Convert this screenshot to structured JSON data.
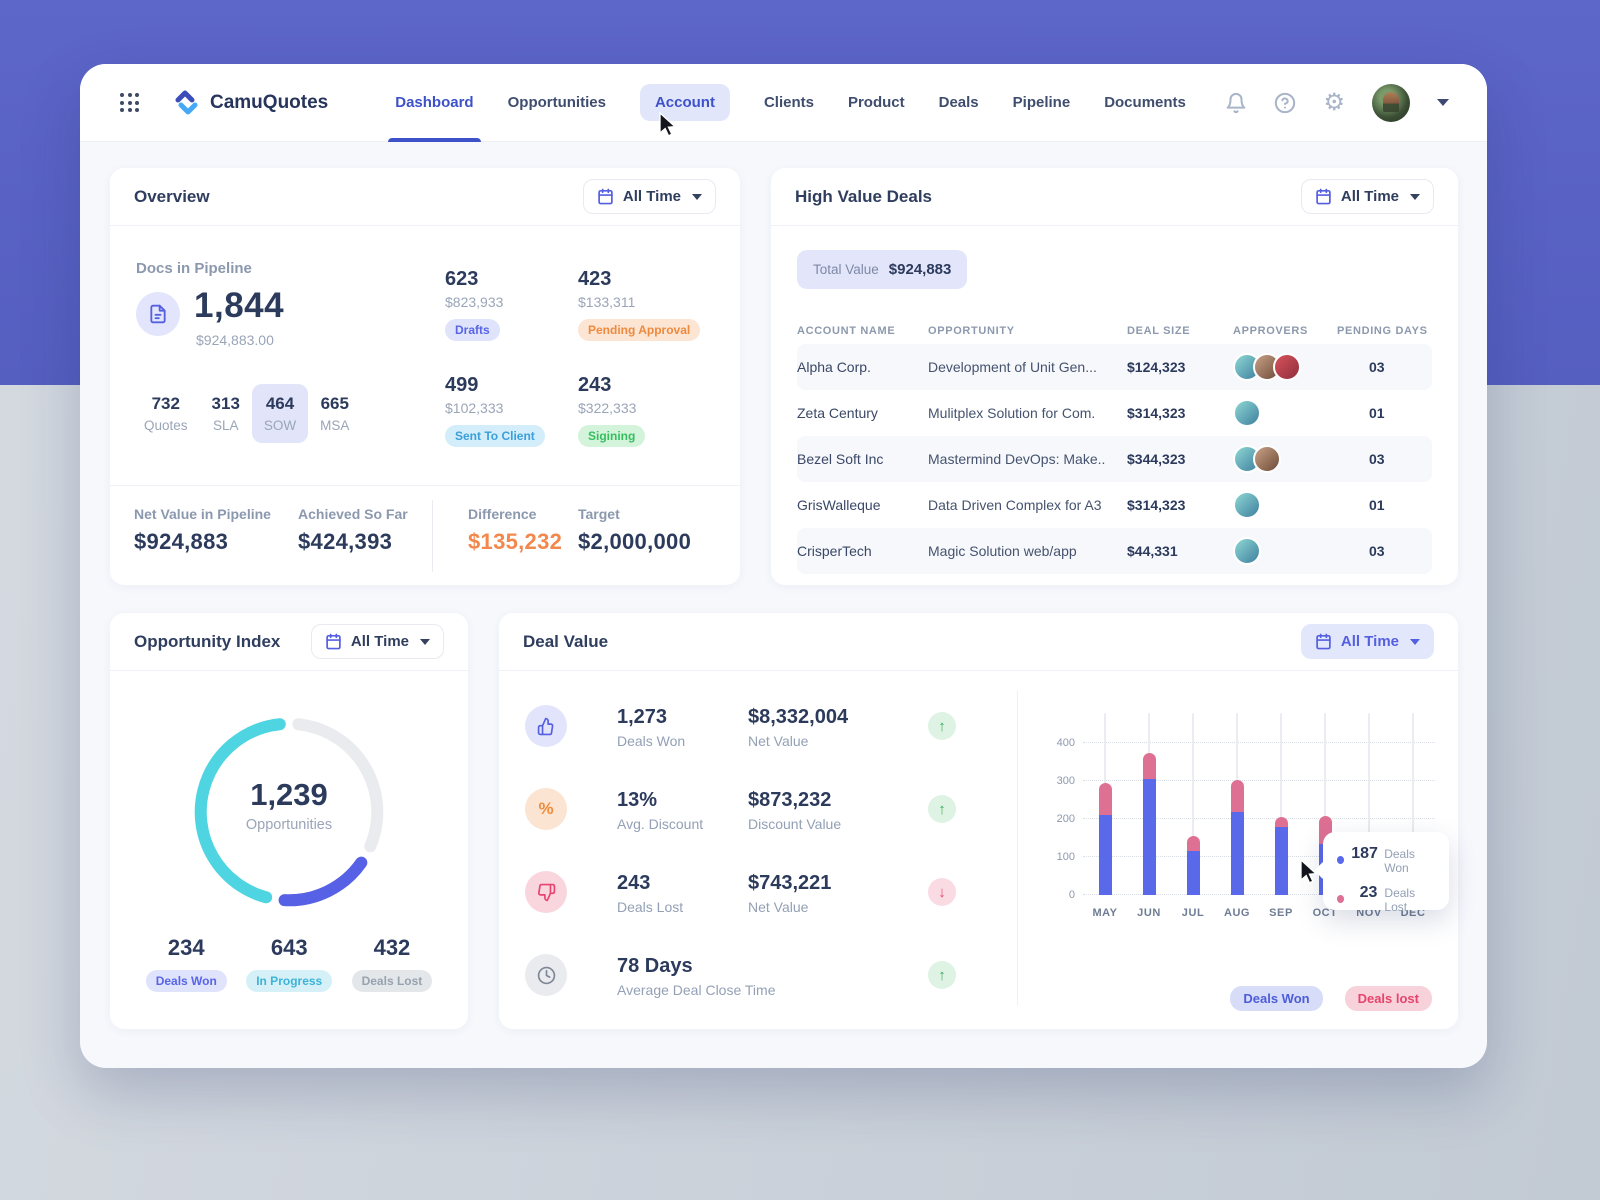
{
  "app": {
    "brand": "CamuQuotes"
  },
  "nav": {
    "items": [
      {
        "label": "Dashboard",
        "state": "active"
      },
      {
        "label": "Opportunities",
        "state": "normal"
      },
      {
        "label": "Account",
        "state": "hovered"
      },
      {
        "label": "Clients",
        "state": "normal"
      },
      {
        "label": "Product",
        "state": "normal"
      },
      {
        "label": "Deals",
        "state": "normal"
      },
      {
        "label": "Pipeline",
        "state": "normal"
      },
      {
        "label": "Documents",
        "state": "normal"
      }
    ]
  },
  "overview": {
    "title": "Overview",
    "time_filter": "All Time",
    "docs_in_pipeline": {
      "label": "Docs in Pipeline",
      "count": "1,844",
      "value": "$924,883.00"
    },
    "doc_types": [
      {
        "count": "732",
        "label": "Quotes",
        "selected": false
      },
      {
        "count": "313",
        "label": "SLA",
        "selected": false
      },
      {
        "count": "464",
        "label": "SOW",
        "selected": true
      },
      {
        "count": "665",
        "label": "MSA",
        "selected": false
      }
    ],
    "statuses": [
      {
        "count": "623",
        "value": "$823,933",
        "label": "Drafts",
        "style": "purple"
      },
      {
        "count": "423",
        "value": "$133,311",
        "label": "Pending Approval",
        "style": "orange"
      },
      {
        "count": "499",
        "value": "$102,333",
        "label": "Sent To Client",
        "style": "blue"
      },
      {
        "count": "243",
        "value": "$322,333",
        "label": "Sigining",
        "style": "green"
      }
    ],
    "footer": [
      {
        "label": "Net Value in Pipeline",
        "value": "$924,883"
      },
      {
        "label": "Achieved So Far",
        "value": "$424,393"
      },
      {
        "label": "Difference",
        "value": "$135,232"
      },
      {
        "label": "Target",
        "value": "$2,000,000"
      }
    ]
  },
  "high_value_deals": {
    "title": "High Value Deals",
    "time_filter": "All Time",
    "total_label": "Total Value",
    "total_value": "$924,883",
    "columns": [
      "ACCOUNT NAME",
      "OPPORTUNITY",
      "DEAL SIZE",
      "APPROVERS",
      "PENDING DAYS"
    ],
    "rows": [
      {
        "account": "Alpha Corp.",
        "opportunity": "Development of Unit Gen...",
        "deal_size": "$124,323",
        "approvers": 3,
        "pending_days": "03"
      },
      {
        "account": "Zeta Century",
        "opportunity": "Mulitplex Solution for Com.",
        "deal_size": "$314,323",
        "approvers": 1,
        "pending_days": "01"
      },
      {
        "account": "Bezel Soft Inc",
        "opportunity": "Mastermind DevOps: Make..",
        "deal_size": "$344,323",
        "approvers": 2,
        "pending_days": "03"
      },
      {
        "account": "GrisWalleque",
        "opportunity": "Data Driven Complex for A3",
        "deal_size": "$314,323",
        "approvers": 1,
        "pending_days": "01"
      },
      {
        "account": "CrisperTech",
        "opportunity": "Magic Solution web/app",
        "deal_size": "$44,331",
        "approvers": 1,
        "pending_days": "03"
      }
    ]
  },
  "opportunity_index": {
    "title": "Opportunity Index",
    "time_filter": "All Time",
    "center_count": "1,239",
    "center_label": "Opportunities",
    "stats": [
      {
        "count": "234",
        "label": "Deals Won",
        "style": "purple"
      },
      {
        "count": "643",
        "label": "In Progress",
        "style": "cyan"
      },
      {
        "count": "432",
        "label": "Deals Lost",
        "style": "gray"
      }
    ],
    "donut_segments": [
      {
        "name": "Deals Lost",
        "value": 432,
        "color": "#e9ebee"
      },
      {
        "name": "Deals Won",
        "value": 234,
        "color": "#5661e6"
      },
      {
        "name": "In Progress",
        "value": 643,
        "color": "#4fd5e2"
      }
    ]
  },
  "deal_value": {
    "title": "Deal Value",
    "time_filter": "All Time",
    "stats": [
      {
        "icon": "thumbs-up-icon",
        "icon_style": "ic-purple",
        "primary": "1,273",
        "primary_label": "Deals Won",
        "secondary": "$8,332,004",
        "secondary_label": "Net Value",
        "trend": "up"
      },
      {
        "icon": "percent-icon",
        "icon_style": "ic-orange",
        "primary": "13%",
        "primary_label": "Avg. Discount",
        "secondary": "$873,232",
        "secondary_label": "Discount Value",
        "trend": "up"
      },
      {
        "icon": "thumbs-down-icon",
        "icon_style": "ic-pink",
        "primary": "243",
        "primary_label": "Deals Lost",
        "secondary": "$743,221",
        "secondary_label": "Net Value",
        "trend": "down"
      },
      {
        "icon": "clock-icon",
        "icon_style": "ic-gray",
        "primary": "78 Days",
        "primary_label": "Average Deal Close Time",
        "secondary": "",
        "secondary_label": "",
        "trend": "up"
      }
    ],
    "tooltip": {
      "won": "187",
      "won_label": "Deals Won",
      "lost": "23",
      "lost_label": "Deals Lost"
    },
    "legend": [
      {
        "label": "Deals Won",
        "style": "purple"
      },
      {
        "label": "Deals lost",
        "style": "pink"
      }
    ]
  },
  "chart_data": {
    "type": "bar",
    "stacked": true,
    "categories": [
      "MAY",
      "JUN",
      "JUL",
      "AUG",
      "SEP",
      "OCT",
      "NOV",
      "DEC"
    ],
    "series": [
      {
        "name": "Deals Won",
        "color": "#5a68ea",
        "values": [
          210,
          305,
          115,
          218,
          178,
          135,
          0,
          0
        ]
      },
      {
        "name": "Deals Lost",
        "color": "#dd7093",
        "values": [
          85,
          70,
          40,
          84,
          27,
          72,
          0,
          0
        ]
      }
    ],
    "ylim": [
      0,
      400
    ],
    "yticks": [
      0,
      100,
      200,
      300,
      400
    ],
    "grid": true,
    "legend_position": "bottom-right"
  },
  "colors": {
    "accent": "#3d52c9",
    "header_bg": "#5a63c6",
    "bar_won": "#5a68ea",
    "bar_lost": "#dd7093",
    "donut_teal": "#4fd5e2",
    "donut_blue": "#5661e6",
    "donut_gray": "#e9ebee",
    "difference_orange": "#f2884b"
  }
}
